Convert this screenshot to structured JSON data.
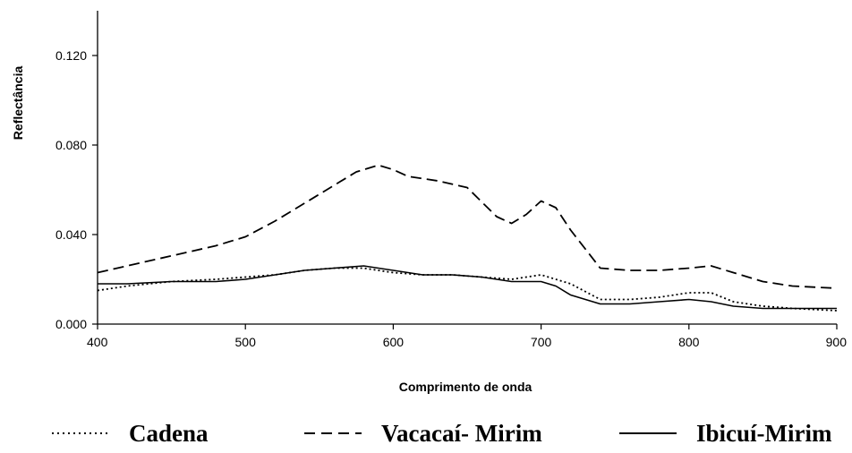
{
  "chart_data": {
    "type": "line",
    "title": "",
    "xlabel": "Comprimento de onda",
    "ylabel": "Reflectância",
    "xlim": [
      400,
      900
    ],
    "ylim": [
      0,
      0.14
    ],
    "x_ticks": [
      400,
      500,
      600,
      700,
      800,
      900
    ],
    "x_tick_labels": [
      "400",
      "500",
      "600",
      "700",
      "800",
      "900"
    ],
    "y_ticks": [
      0,
      0.04,
      0.08,
      0.12
    ],
    "y_tick_labels": [
      "0.000",
      "0.040",
      "0.080",
      "0.120"
    ],
    "grid": false,
    "legend_position": "bottom",
    "series": [
      {
        "name": "Cadena",
        "style": "dotted",
        "color": "#000000",
        "x": [
          400,
          420,
          450,
          480,
          500,
          520,
          540,
          560,
          580,
          600,
          620,
          640,
          660,
          680,
          700,
          720,
          740,
          760,
          780,
          800,
          815,
          830,
          850,
          870,
          900
        ],
        "y": [
          0.015,
          0.017,
          0.019,
          0.02,
          0.021,
          0.022,
          0.024,
          0.025,
          0.025,
          0.023,
          0.022,
          0.022,
          0.021,
          0.02,
          0.022,
          0.018,
          0.011,
          0.011,
          0.012,
          0.014,
          0.014,
          0.01,
          0.008,
          0.007,
          0.006
        ]
      },
      {
        "name": "Vacacaí- Mirim",
        "style": "dashed",
        "color": "#000000",
        "x": [
          400,
          420,
          440,
          460,
          480,
          500,
          520,
          540,
          560,
          575,
          590,
          600,
          610,
          630,
          650,
          670,
          680,
          690,
          700,
          710,
          720,
          740,
          760,
          780,
          800,
          815,
          830,
          850,
          870,
          900
        ],
        "y": [
          0.023,
          0.026,
          0.029,
          0.032,
          0.035,
          0.039,
          0.046,
          0.054,
          0.062,
          0.068,
          0.071,
          0.069,
          0.066,
          0.064,
          0.061,
          0.048,
          0.045,
          0.049,
          0.055,
          0.052,
          0.042,
          0.025,
          0.024,
          0.024,
          0.025,
          0.026,
          0.023,
          0.019,
          0.017,
          0.016
        ]
      },
      {
        "name": "Ibicuí-Mirim",
        "style": "solid",
        "color": "#000000",
        "x": [
          400,
          420,
          450,
          480,
          500,
          520,
          540,
          560,
          580,
          600,
          620,
          640,
          660,
          680,
          700,
          710,
          720,
          740,
          760,
          780,
          800,
          815,
          830,
          850,
          870,
          900
        ],
        "y": [
          0.018,
          0.018,
          0.019,
          0.019,
          0.02,
          0.022,
          0.024,
          0.025,
          0.026,
          0.024,
          0.022,
          0.022,
          0.021,
          0.019,
          0.019,
          0.017,
          0.013,
          0.009,
          0.009,
          0.01,
          0.011,
          0.01,
          0.008,
          0.007,
          0.007,
          0.007
        ]
      }
    ]
  }
}
